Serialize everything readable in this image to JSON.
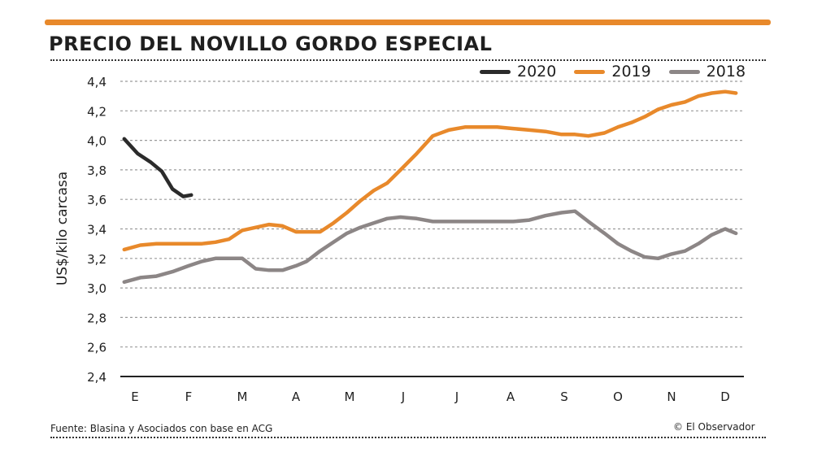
{
  "header": {
    "title": "PRECIO DEL NOVILLO GORDO ESPECIAL"
  },
  "footer": {
    "source": "Fuente: Blasina y Asociados con base en ACG",
    "credit": "© El Observador"
  },
  "colors": {
    "accent": "#e8892b",
    "series_2020": "#2b2b2b",
    "series_2019": "#e8892b",
    "series_2018": "#8c8686"
  },
  "legend": {
    "items": [
      {
        "name": "2020",
        "color": "#2b2b2b"
      },
      {
        "name": "2019",
        "color": "#e8892b"
      },
      {
        "name": "2018",
        "color": "#8c8686"
      }
    ]
  },
  "chart_data": {
    "type": "line",
    "title": "PRECIO DEL NOVILLO GORDO ESPECIAL",
    "xlabel": "",
    "ylabel": "US$/kilo carcasa",
    "ylim": [
      2.4,
      4.4
    ],
    "y_ticks": [
      "2,4",
      "2,6",
      "2,8",
      "3,0",
      "3,2",
      "3,4",
      "3,6",
      "3,8",
      "4,0",
      "4,2",
      "4,4"
    ],
    "y_tick_values": [
      2.4,
      2.6,
      2.8,
      3.0,
      3.2,
      3.4,
      3.6,
      3.8,
      4.0,
      4.2,
      4.4
    ],
    "categories": [
      "E",
      "F",
      "M",
      "A",
      "M",
      "J",
      "J",
      "A",
      "S",
      "O",
      "N",
      "D"
    ],
    "x_range": [
      0,
      11.2
    ],
    "grid": "horizontal dashed",
    "legend_position": "top-right",
    "series": [
      {
        "name": "2020",
        "x": [
          -0.2,
          0.05,
          0.3,
          0.5,
          0.7,
          0.9,
          1.05
        ],
        "values": [
          4.01,
          3.91,
          3.85,
          3.79,
          3.67,
          3.62,
          3.63
        ]
      },
      {
        "name": "2019",
        "x": [
          -0.2,
          0.1,
          0.4,
          0.7,
          1.0,
          1.25,
          1.5,
          1.75,
          2.0,
          2.25,
          2.5,
          2.75,
          3.0,
          3.2,
          3.45,
          3.7,
          3.95,
          4.2,
          4.45,
          4.7,
          4.95,
          5.25,
          5.55,
          5.85,
          6.15,
          6.45,
          6.75,
          7.05,
          7.35,
          7.65,
          7.95,
          8.2,
          8.45,
          8.75,
          9.0,
          9.25,
          9.5,
          9.75,
          10.0,
          10.25,
          10.5,
          10.75,
          11.0,
          11.2
        ],
        "values": [
          3.26,
          3.29,
          3.3,
          3.3,
          3.3,
          3.3,
          3.31,
          3.33,
          3.39,
          3.41,
          3.43,
          3.42,
          3.38,
          3.38,
          3.38,
          3.44,
          3.51,
          3.59,
          3.66,
          3.71,
          3.8,
          3.91,
          4.03,
          4.07,
          4.09,
          4.09,
          4.09,
          4.08,
          4.07,
          4.06,
          4.04,
          4.04,
          4.03,
          4.05,
          4.09,
          4.12,
          4.16,
          4.21,
          4.24,
          4.26,
          4.3,
          4.32,
          4.33,
          4.32
        ]
      },
      {
        "name": "2018",
        "x": [
          -0.2,
          0.1,
          0.4,
          0.7,
          1.0,
          1.25,
          1.5,
          1.75,
          2.0,
          2.25,
          2.5,
          2.75,
          3.0,
          3.2,
          3.45,
          3.7,
          3.95,
          4.2,
          4.45,
          4.7,
          4.95,
          5.25,
          5.55,
          5.85,
          6.15,
          6.45,
          6.75,
          7.05,
          7.35,
          7.65,
          7.95,
          8.2,
          8.45,
          8.75,
          9.0,
          9.25,
          9.5,
          9.75,
          10.0,
          10.25,
          10.5,
          10.75,
          11.0,
          11.2
        ],
        "values": [
          3.04,
          3.07,
          3.08,
          3.11,
          3.15,
          3.18,
          3.2,
          3.2,
          3.2,
          3.13,
          3.12,
          3.12,
          3.15,
          3.18,
          3.25,
          3.31,
          3.37,
          3.41,
          3.44,
          3.47,
          3.48,
          3.47,
          3.45,
          3.45,
          3.45,
          3.45,
          3.45,
          3.45,
          3.46,
          3.49,
          3.51,
          3.52,
          3.45,
          3.37,
          3.3,
          3.25,
          3.21,
          3.2,
          3.23,
          3.25,
          3.3,
          3.36,
          3.4,
          3.37
        ]
      }
    ]
  }
}
